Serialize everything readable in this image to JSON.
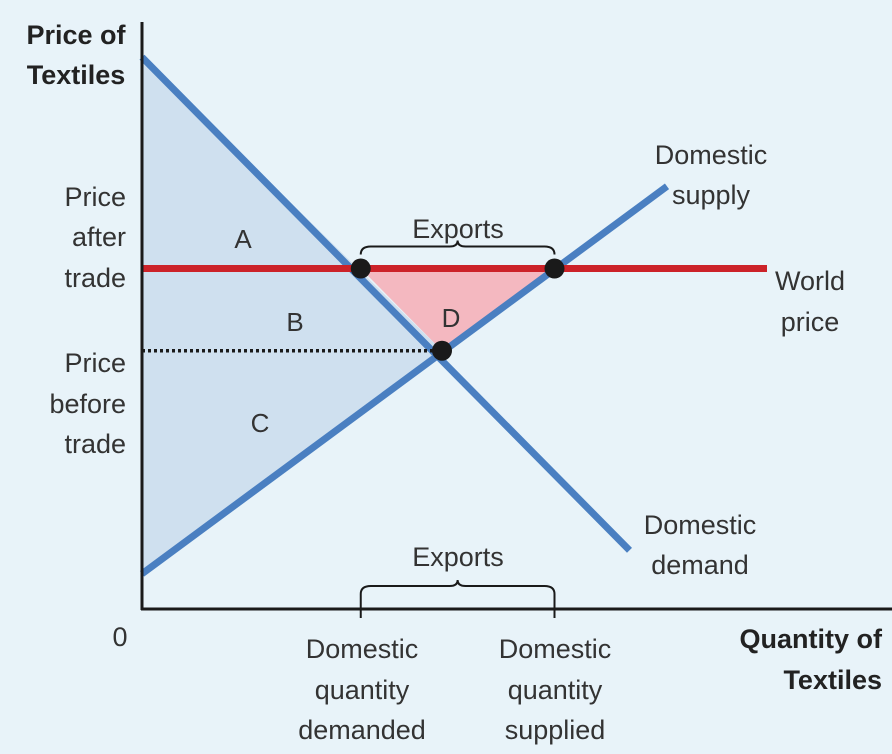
{
  "chart_data": {
    "type": "line",
    "title": "",
    "ylabel_lines": [
      "Price of",
      "Textiles"
    ],
    "xlabel_lines": [
      "Quantity of",
      "Textiles"
    ],
    "origin_label": "0",
    "price_levels": {
      "after_trade": {
        "label_lines": [
          "Price",
          "after",
          "trade"
        ],
        "value": 0.58
      },
      "before_trade": {
        "label_lines": [
          "Price",
          "before",
          "trade"
        ],
        "value": 0.44
      }
    },
    "quantity_levels": {
      "demanded": {
        "label_lines": [
          "Domestic",
          "quantity",
          "demanded"
        ],
        "value": 0.35
      },
      "supplied": {
        "label_lines": [
          "Domestic",
          "quantity",
          "supplied"
        ],
        "value": 0.66
      }
    },
    "series": [
      {
        "name": "Domestic demand",
        "label_lines": [
          "Domestic",
          "demand"
        ],
        "color": "#4a7fc1",
        "points": [
          [
            0,
            0.94
          ],
          [
            0.78,
            0.1
          ]
        ]
      },
      {
        "name": "Domestic supply",
        "label_lines": [
          "Domestic",
          "supply"
        ],
        "color": "#4a7fc1",
        "points": [
          [
            0,
            0.06
          ],
          [
            0.84,
            0.72
          ]
        ]
      },
      {
        "name": "World price",
        "label_lines": [
          "World",
          "price"
        ],
        "color": "#cc2229",
        "points": [
          [
            0,
            0.58
          ],
          [
            1.0,
            0.58
          ]
        ]
      }
    ],
    "equilibrium": {
      "x": 0.48,
      "y": 0.44
    },
    "regions": {
      "A": "A",
      "B": "B",
      "C": "C",
      "D": "D"
    },
    "exports_label": "Exports",
    "colors": {
      "consumer_surplus_fill": "#cfe0ef",
      "gain_fill": "#f4b8c0",
      "axis": "#1a1a1a",
      "dot": "#1a1a1a"
    },
    "xlim": [
      0,
      1.2
    ],
    "ylim": [
      0,
      1.0
    ],
    "grid": false
  }
}
